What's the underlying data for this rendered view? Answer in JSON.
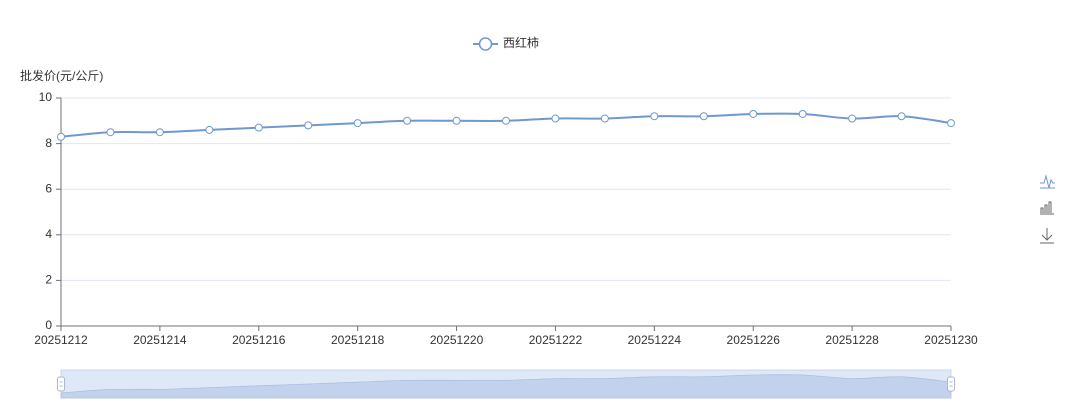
{
  "chart_data": {
    "type": "line",
    "legend": "西红柿",
    "y_label": "批发价(元/公斤)",
    "categories": [
      "20251212",
      null,
      "20251214",
      null,
      "20251216",
      null,
      "20251218",
      null,
      "20251220",
      null,
      "20251222",
      null,
      "20251224",
      null,
      "20251226",
      null,
      "20251228",
      null,
      "20251230"
    ],
    "series": [
      {
        "name": "西红柿",
        "color": "#6f98d0",
        "values": [
          8.3,
          8.5,
          8.5,
          8.6,
          8.7,
          8.8,
          8.9,
          9.0,
          9.0,
          9.0,
          9.1,
          9.1,
          9.2,
          9.2,
          9.3,
          9.3,
          9.1,
          9.2,
          8.9
        ]
      }
    ],
    "ylim": [
      0,
      10
    ],
    "yticks": [
      0,
      2,
      4,
      6,
      8,
      10
    ],
    "grid": true
  }
}
